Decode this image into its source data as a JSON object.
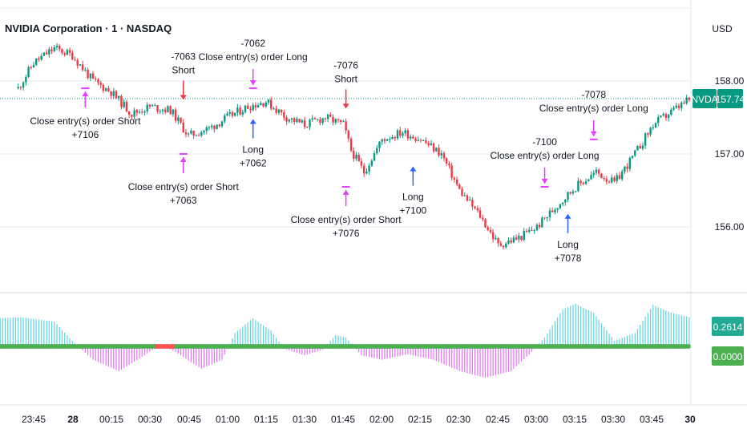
{
  "header": {
    "title": "NVIDIA Corporation · 1 · NASDAQ",
    "currency": "USD"
  },
  "price_axis": {
    "ticks": [
      "158.00",
      "157.00",
      "156.00"
    ],
    "symbol_badge": "NVDA",
    "last_price": "157.74",
    "colors": {
      "badge": "#089981",
      "osc_badge": "#22ab94",
      "zero_badge": "#4caf50"
    }
  },
  "oscillator": {
    "value_label": "0.2614",
    "zero_label": "0.0000"
  },
  "time_axis": {
    "labels": [
      "23:45",
      "28",
      "00:15",
      "00:30",
      "00:45",
      "01:00",
      "01:15",
      "01:30",
      "01:45",
      "02:00",
      "02:15",
      "02:30",
      "02:45",
      "03:00",
      "03:15",
      "03:30",
      "03:45",
      "30"
    ]
  },
  "colors": {
    "up": "#089981",
    "down": "#f23645",
    "long_arrow": "#2962ff",
    "short_arrow": "#f23645",
    "close_marker": "#e040fb",
    "zero_dot": "#4caf50",
    "hist_pos": "#26c6da",
    "hist_neg": "#e040fb"
  },
  "chart_data": {
    "type": "candlestick",
    "title": "NVIDIA Corporation · 1 · NASDAQ",
    "y_unit": "USD",
    "ylim": [
      155.5,
      158.7
    ],
    "y_ticks": [
      156.0,
      157.0,
      158.0
    ],
    "last_price": 157.74,
    "x_ticks": [
      "23:45",
      "28",
      "00:15",
      "00:30",
      "00:45",
      "01:00",
      "01:15",
      "01:30",
      "01:45",
      "02:00",
      "02:15",
      "02:30",
      "02:45",
      "03:00",
      "03:15",
      "03:30",
      "03:45",
      "30"
    ],
    "price_path": [
      {
        "t": "23:39",
        "p": 157.9
      },
      {
        "t": "23:45",
        "p": 158.25
      },
      {
        "t": "23:53",
        "p": 158.45
      },
      {
        "t": "00:00",
        "p": 158.35
      },
      {
        "t": "00:08",
        "p": 158.0
      },
      {
        "t": "00:15",
        "p": 157.85
      },
      {
        "t": "00:23",
        "p": 157.55
      },
      {
        "t": "00:30",
        "p": 157.65
      },
      {
        "t": "00:38",
        "p": 157.6
      },
      {
        "t": "00:45",
        "p": 157.25
      },
      {
        "t": "00:53",
        "p": 157.35
      },
      {
        "t": "01:00",
        "p": 157.5
      },
      {
        "t": "01:08",
        "p": 157.65
      },
      {
        "t": "01:15",
        "p": 157.72
      },
      {
        "t": "01:23",
        "p": 157.5
      },
      {
        "t": "01:30",
        "p": 157.4
      },
      {
        "t": "01:38",
        "p": 157.5
      },
      {
        "t": "01:45",
        "p": 157.4
      },
      {
        "t": "01:48",
        "p": 157.05
      },
      {
        "t": "01:53",
        "p": 156.75
      },
      {
        "t": "02:00",
        "p": 157.2
      },
      {
        "t": "02:08",
        "p": 157.3
      },
      {
        "t": "02:15",
        "p": 157.2
      },
      {
        "t": "02:23",
        "p": 157.0
      },
      {
        "t": "02:30",
        "p": 156.5
      },
      {
        "t": "02:38",
        "p": 156.15
      },
      {
        "t": "02:45",
        "p": 155.75
      },
      {
        "t": "02:53",
        "p": 155.85
      },
      {
        "t": "03:00",
        "p": 156.0
      },
      {
        "t": "03:08",
        "p": 156.3
      },
      {
        "t": "03:15",
        "p": 156.55
      },
      {
        "t": "03:23",
        "p": 156.75
      },
      {
        "t": "03:30",
        "p": 156.6
      },
      {
        "t": "03:38",
        "p": 157.0
      },
      {
        "t": "03:45",
        "p": 157.4
      },
      {
        "t": "03:53",
        "p": 157.6
      },
      {
        "t": "03:59",
        "p": 157.74
      }
    ],
    "trades": [
      {
        "kind": "close",
        "side": "below",
        "time": "00:05",
        "price": 157.9,
        "text": [
          "Close entry(s) order Short",
          "+7106"
        ]
      },
      {
        "kind": "entry",
        "dir": "short",
        "time": "00:43",
        "price": 157.72,
        "text": [
          "-7063",
          "Short"
        ]
      },
      {
        "kind": "close",
        "side": "below",
        "time": "00:43",
        "price": 157.0,
        "text": [
          "Close entry(s) order Short",
          "+7063"
        ]
      },
      {
        "kind": "entry",
        "dir": "long",
        "time": "01:10",
        "price": 157.5,
        "text": [
          "Long",
          "+7062"
        ]
      },
      {
        "kind": "close",
        "side": "above",
        "time": "01:10",
        "price": 157.9,
        "text": [
          "-7062",
          "Close entry(s) order Long"
        ]
      },
      {
        "kind": "entry",
        "dir": "short",
        "time": "01:46",
        "price": 157.6,
        "text": [
          "-7076",
          "Short"
        ]
      },
      {
        "kind": "close",
        "side": "below",
        "time": "01:46",
        "price": 156.55,
        "text": [
          "Close entry(s) order Short",
          "+7076"
        ]
      },
      {
        "kind": "entry",
        "dir": "long",
        "time": "02:12",
        "price": 156.85,
        "text": [
          "Long",
          "+7100"
        ]
      },
      {
        "kind": "close",
        "side": "above",
        "time": "03:03",
        "price": 156.55,
        "text": [
          "-7100",
          "Close entry(s) order Long"
        ]
      },
      {
        "kind": "entry",
        "dir": "long",
        "time": "03:12",
        "price": 156.2,
        "text": [
          "Long",
          "+7078"
        ]
      },
      {
        "kind": "close",
        "side": "above",
        "time": "03:22",
        "price": 157.2,
        "text": [
          "-7078",
          "Close entry(s) order Long"
        ]
      }
    ],
    "oscillator": {
      "type": "histogram",
      "value": 0.2614,
      "zero": 0.0,
      "profile": [
        {
          "t": "23:30",
          "v": 0.25
        },
        {
          "t": "23:40",
          "v": 0.26
        },
        {
          "t": "23:53",
          "v": 0.22
        },
        {
          "t": "00:00",
          "v": 0.05
        },
        {
          "t": "00:08",
          "v": -0.12
        },
        {
          "t": "00:18",
          "v": -0.22
        },
        {
          "t": "00:28",
          "v": -0.08
        },
        {
          "t": "00:34",
          "v": 0.02
        },
        {
          "t": "00:40",
          "v": -0.05
        },
        {
          "t": "00:50",
          "v": -0.2
        },
        {
          "t": "00:58",
          "v": -0.12
        },
        {
          "t": "01:03",
          "v": 0.12
        },
        {
          "t": "01:10",
          "v": 0.25
        },
        {
          "t": "01:17",
          "v": 0.14
        },
        {
          "t": "01:22",
          "v": -0.02
        },
        {
          "t": "01:30",
          "v": -0.08
        },
        {
          "t": "01:37",
          "v": -0.03
        },
        {
          "t": "01:42",
          "v": 0.1
        },
        {
          "t": "01:46",
          "v": 0.08
        },
        {
          "t": "01:52",
          "v": -0.08
        },
        {
          "t": "02:00",
          "v": -0.12
        },
        {
          "t": "02:10",
          "v": -0.07
        },
        {
          "t": "02:20",
          "v": -0.12
        },
        {
          "t": "02:30",
          "v": -0.22
        },
        {
          "t": "02:40",
          "v": -0.28
        },
        {
          "t": "02:50",
          "v": -0.22
        },
        {
          "t": "02:58",
          "v": -0.05
        },
        {
          "t": "03:03",
          "v": 0.08
        },
        {
          "t": "03:10",
          "v": 0.33
        },
        {
          "t": "03:15",
          "v": 0.38
        },
        {
          "t": "03:22",
          "v": 0.3
        },
        {
          "t": "03:30",
          "v": 0.05
        },
        {
          "t": "03:38",
          "v": 0.12
        },
        {
          "t": "03:45",
          "v": 0.37
        },
        {
          "t": "03:52",
          "v": 0.3
        },
        {
          "t": "03:59",
          "v": 0.26
        }
      ]
    }
  }
}
